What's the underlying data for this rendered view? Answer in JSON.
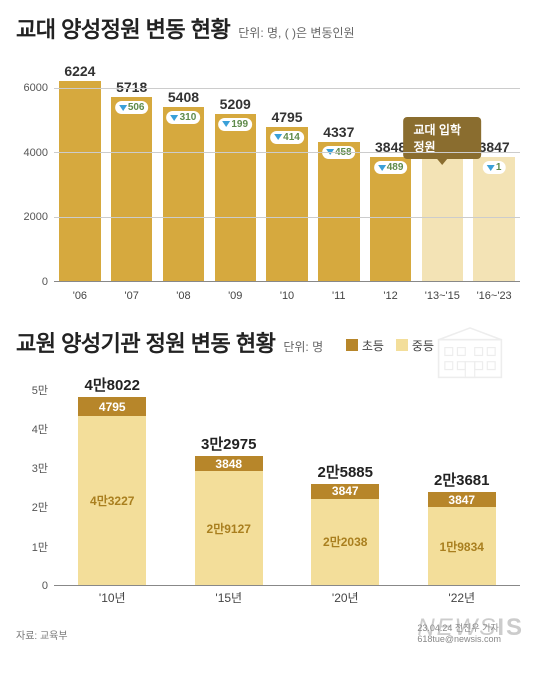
{
  "chart1": {
    "type": "bar",
    "title": "교대 양성정원 변동 현황",
    "unit": "단위: 명, ( )은 변동인원",
    "ylim": [
      0,
      7000
    ],
    "yticks": [
      0,
      2000,
      4000,
      6000
    ],
    "ytick_labels": [
      "0",
      "2000",
      "4000",
      "6000"
    ],
    "grid_color": "#cccccc",
    "categories": [
      "'06",
      "'07",
      "'08",
      "'09",
      "'10",
      "'11",
      "'12",
      "'13~'15",
      "'16~'23"
    ],
    "values": [
      6224,
      5718,
      5408,
      5209,
      4795,
      4337,
      3848,
      3848,
      3847
    ],
    "deltas": [
      null,
      506,
      310,
      199,
      414,
      458,
      489,
      null,
      1
    ],
    "bar_colors": [
      "#d6a93e",
      "#d6a93e",
      "#d6a93e",
      "#d6a93e",
      "#d6a93e",
      "#d6a93e",
      "#d6a93e",
      "#f3e3b5",
      "#f3e3b5"
    ],
    "value_fontsize": 14,
    "value_color": "#333333",
    "delta_bg": "#ffffff",
    "delta_arrow_color": "#3aa0d8",
    "delta_text_color": "#5e8a4a",
    "annotation": {
      "text": "교대 입학정원",
      "target_index": 7,
      "bg": "#8a6d2f",
      "color": "#ffffff"
    },
    "background_color": "#ffffff"
  },
  "chart2": {
    "type": "stacked-bar",
    "title": "교원 양성기관 정원 변동 현황",
    "unit": "단위: 명",
    "legend": [
      {
        "label": "초등",
        "color": "#b7862a"
      },
      {
        "label": "중등",
        "color": "#f3de9a"
      }
    ],
    "ylim": [
      0,
      55000
    ],
    "yticks": [
      0,
      10000,
      20000,
      30000,
      40000,
      50000
    ],
    "ytick_labels": [
      "0",
      "1만",
      "2만",
      "3만",
      "4만",
      "5만"
    ],
    "categories": [
      "'10년",
      "'15년",
      "'20년",
      "'22년"
    ],
    "totals": [
      "4만8022",
      "3만2975",
      "2만5885",
      "2만3681"
    ],
    "series": {
      "elementary": {
        "label": "초등",
        "color": "#b7862a",
        "text_color": "#ffffff",
        "values": [
          4795,
          3848,
          3847,
          3847
        ],
        "display": [
          "4795",
          "3848",
          "3847",
          "3847"
        ]
      },
      "secondary": {
        "label": "중등",
        "color": "#f3de9a",
        "text_color": "#a97f1f",
        "values": [
          43227,
          29127,
          22038,
          19834
        ],
        "display": [
          "4만3227",
          "2만9127",
          "2만2038",
          "1만9834"
        ]
      }
    },
    "building_icon_color": "#cfcfcf",
    "background_color": "#ffffff"
  },
  "footer": {
    "source_label": "자료: 교육부",
    "credit": "23.04.24 전진우 기자 618tue@newsis.com",
    "watermark": "NEWSIS"
  }
}
